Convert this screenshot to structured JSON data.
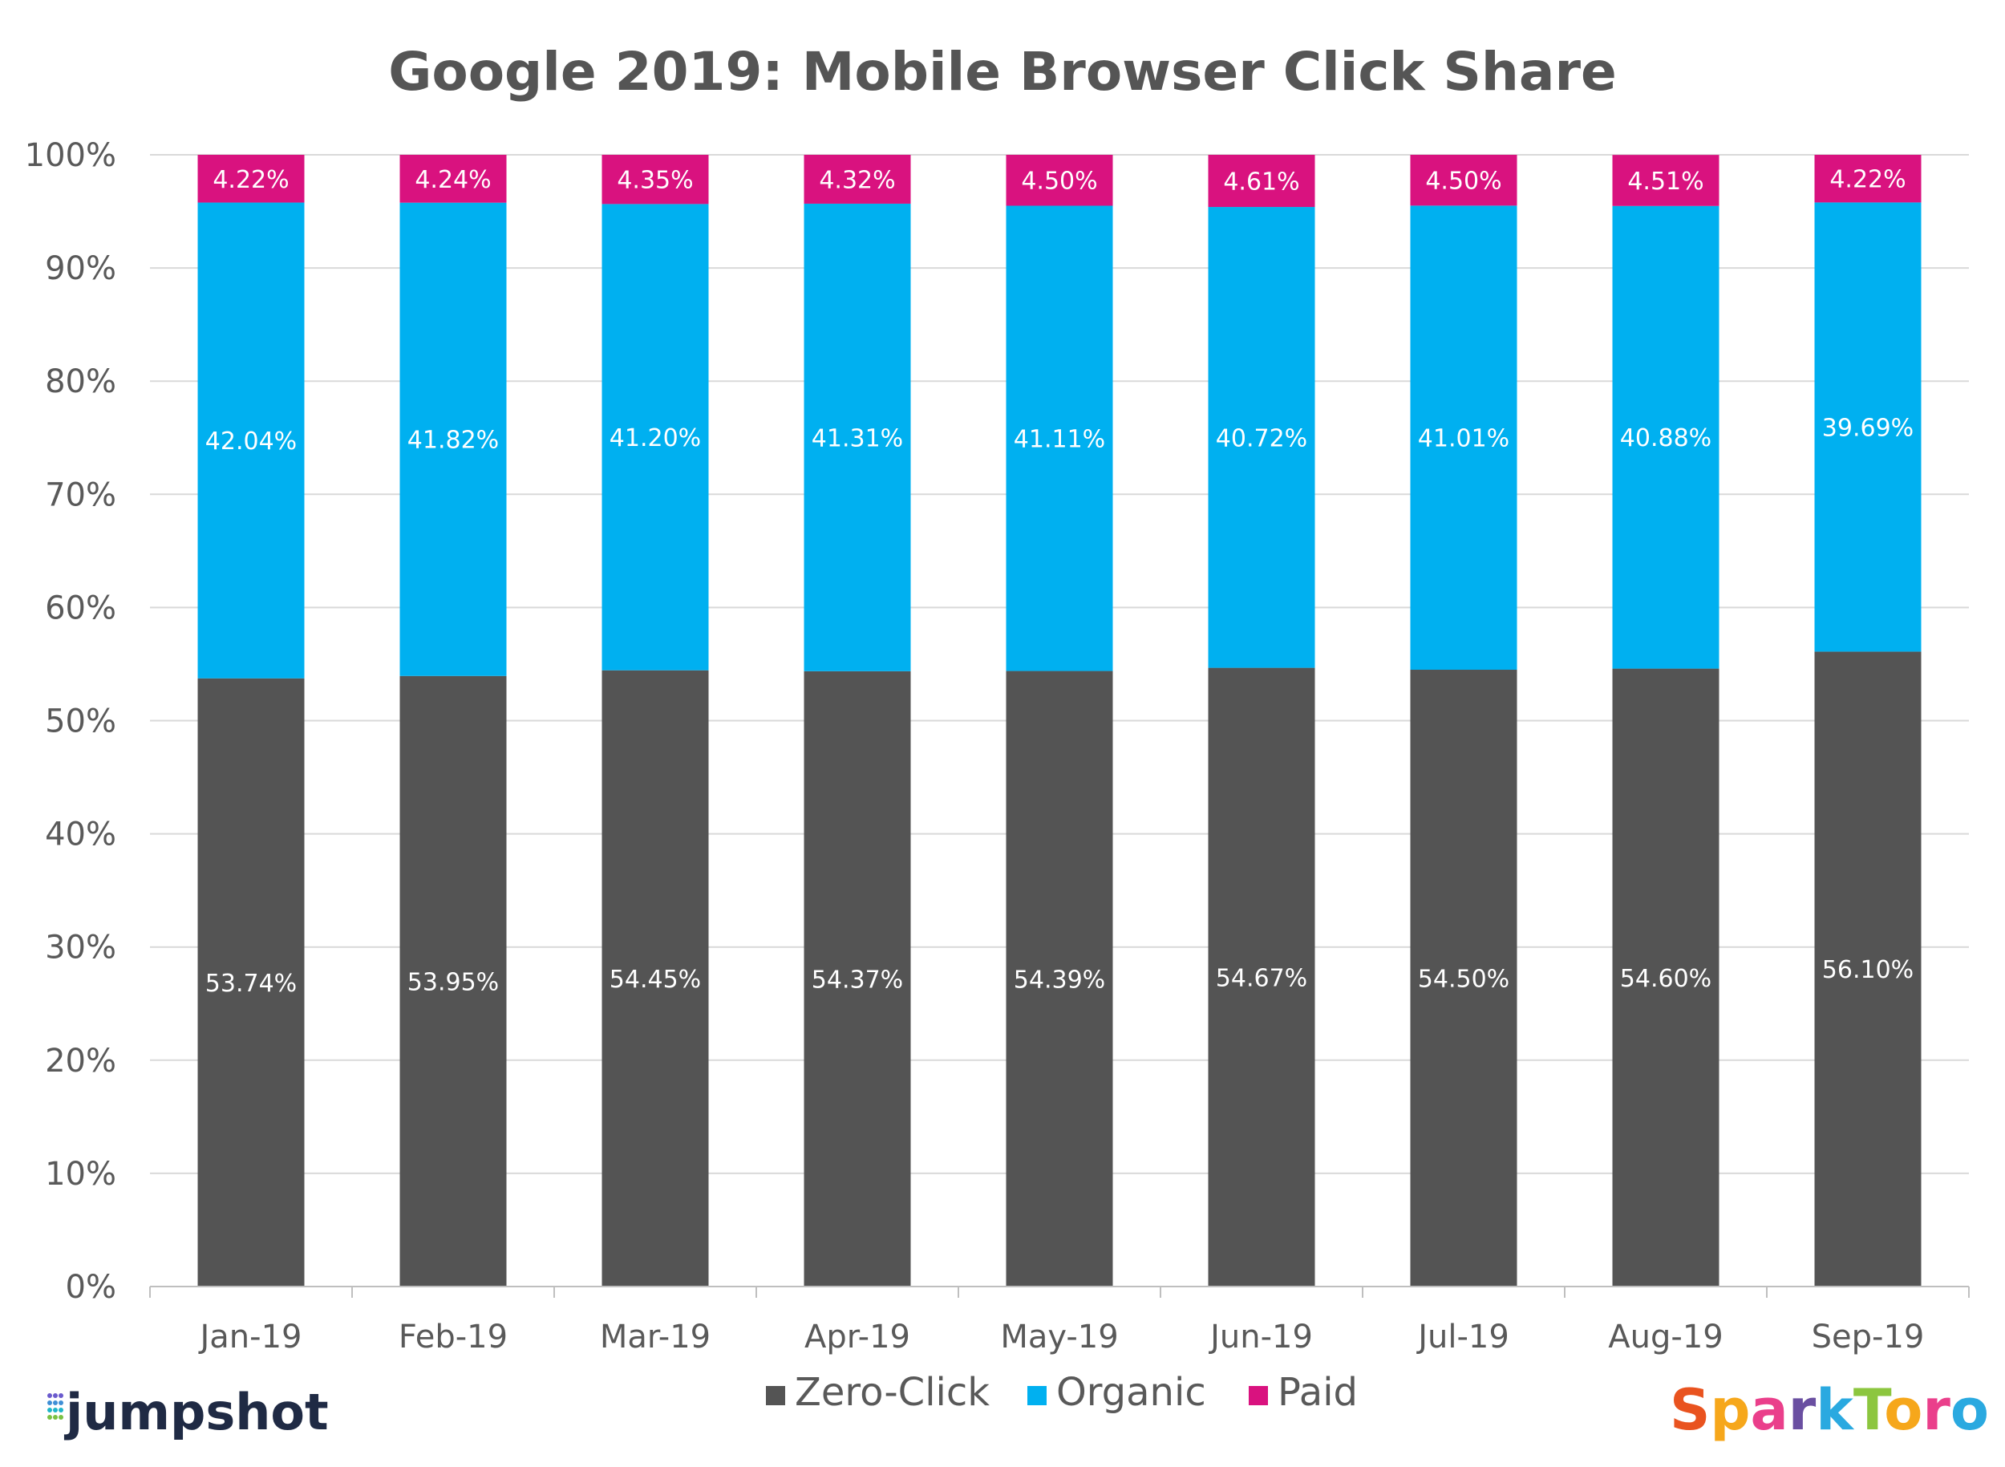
{
  "chart_data": {
    "type": "bar",
    "stacked": true,
    "title": "Google 2019: Mobile Browser Click Share",
    "xlabel": "",
    "ylabel": "",
    "ylim": [
      0,
      100
    ],
    "y_ticks": [
      "0%",
      "10%",
      "20%",
      "30%",
      "40%",
      "50%",
      "60%",
      "70%",
      "80%",
      "90%",
      "100%"
    ],
    "grid": true,
    "legend_position": "bottom",
    "categories": [
      "Jan-19",
      "Feb-19",
      "Mar-19",
      "Apr-19",
      "May-19",
      "Jun-19",
      "Jul-19",
      "Aug-19",
      "Sep-19"
    ],
    "series": [
      {
        "name": "Zero-Click",
        "color": "#545454",
        "values": [
          53.74,
          53.95,
          54.45,
          54.37,
          54.39,
          54.67,
          54.5,
          54.6,
          56.1
        ],
        "labels": [
          "53.74%",
          "53.95%",
          "54.45%",
          "54.37%",
          "54.39%",
          "54.67%",
          "54.50%",
          "54.60%",
          "56.10%"
        ]
      },
      {
        "name": "Organic",
        "color": "#00b0f0",
        "values": [
          42.04,
          41.82,
          41.2,
          41.31,
          41.11,
          40.72,
          41.01,
          40.88,
          39.69
        ],
        "labels": [
          "42.04%",
          "41.82%",
          "41.20%",
          "41.31%",
          "41.11%",
          "40.72%",
          "41.01%",
          "40.88%",
          "39.69%"
        ]
      },
      {
        "name": "Paid",
        "color": "#d9127f",
        "values": [
          4.22,
          4.24,
          4.35,
          4.32,
          4.5,
          4.61,
          4.5,
          4.51,
          4.22
        ],
        "labels": [
          "4.22%",
          "4.24%",
          "4.35%",
          "4.32%",
          "4.50%",
          "4.61%",
          "4.50%",
          "4.51%",
          "4.22%"
        ]
      }
    ]
  },
  "logos": {
    "left": "jumpshot",
    "right": "SparkToro"
  },
  "colors": {
    "gridline": "#d9d9d9",
    "axis_text": "#595959",
    "title": "#555555"
  }
}
